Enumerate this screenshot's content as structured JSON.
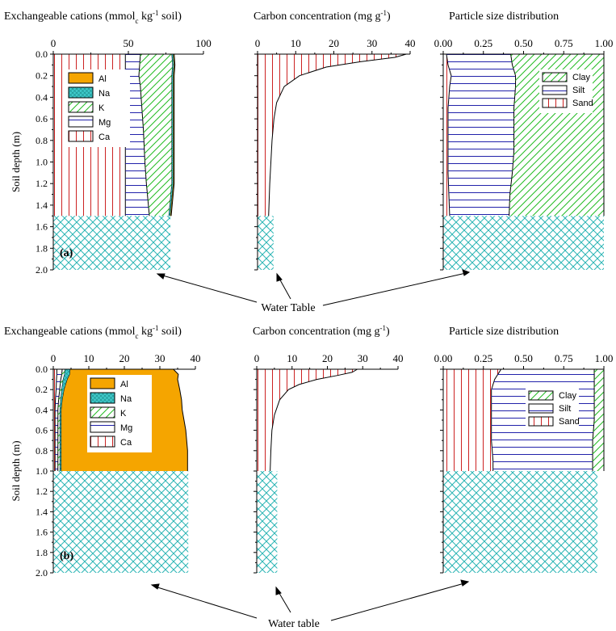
{
  "colors": {
    "al": "#f5a500",
    "na": "#3ec8c8",
    "k": "#2aa52a",
    "mg": "#2222aa",
    "ca": "#cc2222",
    "clay": "#22bb22",
    "silt": "#2222aa",
    "sand": "#cc2222",
    "water": "#2bb5b5",
    "axis": "#000000"
  },
  "water_labels": {
    "top": "Water Table",
    "bottom": "Water table"
  },
  "legend_labels": {
    "cations": [
      "Al",
      "Na",
      "K",
      "Mg",
      "Ca"
    ],
    "particles": [
      "Clay",
      "Silt",
      "Sand"
    ]
  },
  "chart_data": [
    {
      "panel": "a",
      "id": "a-cations",
      "type": "area",
      "title": "Exchangeable cations (mmolc kg-1 soil)",
      "title_parts": [
        "Exchangeable cations (mmol",
        "c",
        " kg",
        "-1",
        " soil)"
      ],
      "ylabel": "Soil depth (m)",
      "panel_label": "(a)",
      "xlim": [
        0,
        100
      ],
      "xticks": [
        0,
        50,
        100
      ],
      "ylim": [
        0,
        2
      ],
      "yticks": [
        "0.0",
        "0.2",
        "0.4",
        "0.6",
        "0.8",
        "1.0",
        "1.2",
        "1.4",
        "1.6",
        "1.8",
        "2.0"
      ],
      "water_table_depth": 1.5,
      "water_fill_x": 78,
      "depth": [
        0,
        0.1,
        0.2,
        0.3,
        0.5,
        0.7,
        1.0,
        1.2,
        1.5
      ],
      "series": [
        {
          "name": "Ca",
          "values": [
            48,
            48,
            48,
            48,
            48,
            48,
            48,
            48,
            48
          ]
        },
        {
          "name": "Mg",
          "values": [
            10,
            9.5,
            9,
            10,
            11,
            12,
            13,
            14,
            16
          ]
        },
        {
          "name": "K",
          "values": [
            21,
            22,
            22,
            21,
            20,
            19,
            18,
            17,
            13
          ]
        },
        {
          "name": "Na",
          "values": [
            1,
            1,
            1,
            1,
            1,
            1,
            1,
            1,
            1
          ]
        },
        {
          "name": "Al",
          "values": [
            0.5,
            0.5,
            0.5,
            0.5,
            0.5,
            0.5,
            0.5,
            0.5,
            0.5
          ]
        }
      ]
    },
    {
      "panel": "a",
      "id": "a-carbon",
      "type": "area",
      "title": "Carbon concentration (mg g-1)",
      "title_parts": [
        "Carbon concentration  (mg g",
        "-1",
        ")"
      ],
      "xlim": [
        0,
        40
      ],
      "xticks": [
        0,
        10,
        20,
        30,
        40
      ],
      "ylim": [
        0,
        2
      ],
      "water_table_depth": 1.5,
      "water_fill_x": 4.2,
      "depth": [
        0,
        0.03,
        0.07,
        0.12,
        0.2,
        0.3,
        0.45,
        0.6,
        0.8,
        1.0,
        1.2,
        1.5
      ],
      "values": [
        39,
        36,
        27,
        18,
        11,
        7,
        5,
        4.3,
        3.8,
        3.5,
        3.2,
        2.9
      ]
    },
    {
      "panel": "a",
      "id": "a-particle",
      "type": "area",
      "title": "Particle size distribution",
      "xlim": [
        0,
        1
      ],
      "xticks": [
        "0.00",
        "0.25",
        "0.50",
        "0.75",
        "1.00"
      ],
      "ylim": [
        0,
        2
      ],
      "water_table_depth": 1.5,
      "water_fill_x": 1.0,
      "depth": [
        0,
        0.1,
        0.2,
        0.3,
        0.5,
        0.7,
        0.9,
        1.1,
        1.3,
        1.5
      ],
      "series": [
        {
          "name": "Sand",
          "values": [
            0.02,
            0.03,
            0.05,
            0.04,
            0.03,
            0.03,
            0.03,
            0.03,
            0.035,
            0.04
          ]
        },
        {
          "name": "Silt",
          "values": [
            0.4,
            0.4,
            0.4,
            0.41,
            0.41,
            0.41,
            0.41,
            0.4,
            0.38,
            0.37
          ]
        },
        {
          "name": "Clay",
          "values": [
            0.58,
            0.57,
            0.55,
            0.55,
            0.56,
            0.56,
            0.56,
            0.57,
            0.585,
            0.59
          ]
        }
      ]
    },
    {
      "panel": "b",
      "id": "b-cations",
      "type": "area",
      "title": "Exchangeable cations (mmolc kg-1 soil)",
      "title_parts": [
        "Exchangeable cations (mmol",
        "c",
        " kg",
        "-1",
        " soil)"
      ],
      "ylabel": "Soil depth (m)",
      "panel_label": "(b)",
      "xlim": [
        0,
        40
      ],
      "xticks": [
        0,
        10,
        20,
        30,
        40
      ],
      "ylim": [
        0,
        2
      ],
      "yticks": [
        "0.0",
        "0.2",
        "0.4",
        "0.6",
        "0.8",
        "1.0",
        "1.2",
        "1.4",
        "1.6",
        "1.8",
        "2.0"
      ],
      "water_table_depth": 1.0,
      "water_fill_x": 38,
      "depth": [
        0,
        0.05,
        0.1,
        0.2,
        0.3,
        0.4,
        0.5,
        0.6,
        0.8,
        1.0
      ],
      "series": [
        {
          "name": "Ca",
          "values": [
            1,
            1,
            0.9,
            0.8,
            0.6,
            0.5,
            0.5,
            0.5,
            0.5,
            0.5
          ]
        },
        {
          "name": "Mg",
          "values": [
            1.5,
            1.4,
            1.2,
            1.0,
            0.9,
            0.8,
            0.8,
            0.8,
            0.8,
            0.8
          ]
        },
        {
          "name": "K",
          "values": [
            0.8,
            0.8,
            0.7,
            0.6,
            0.6,
            0.6,
            0.6,
            0.6,
            0.6,
            0.6
          ]
        },
        {
          "name": "Na",
          "values": [
            1.5,
            1.5,
            1.2,
            0.7,
            0.5,
            0.4,
            0.4,
            0.4,
            0.4,
            0.4
          ]
        },
        {
          "name": "Al",
          "values": [
            29,
            30.5,
            31,
            32.5,
            33.5,
            34,
            34.5,
            35,
            35.5,
            35.5
          ]
        }
      ]
    },
    {
      "panel": "b",
      "id": "b-carbon",
      "type": "area",
      "title": "Carbon concentration (mg g-1)",
      "title_parts": [
        "Carbon concentration  (mg g",
        "-1",
        ")"
      ],
      "xlim": [
        0,
        40
      ],
      "xticks": [
        0,
        10,
        20,
        30,
        40
      ],
      "ylim": [
        0,
        2
      ],
      "water_table_depth": 1.0,
      "water_fill_x": 5.8,
      "depth": [
        0,
        0.03,
        0.06,
        0.1,
        0.15,
        0.2,
        0.3,
        0.45,
        0.6,
        0.8,
        1.0
      ],
      "values": [
        28.5,
        27,
        23,
        17,
        12,
        9,
        6.5,
        5,
        4.3,
        4,
        3.8
      ]
    },
    {
      "panel": "b",
      "id": "b-particle",
      "type": "area",
      "title": "Particle size distribution",
      "xlim": [
        0,
        1
      ],
      "xticks": [
        "0.00",
        "0.25",
        "0.50",
        "0.75",
        "1.00"
      ],
      "ylim": [
        0,
        2
      ],
      "water_table_depth": 1.0,
      "water_fill_x": 0.96,
      "depth": [
        0,
        0.05,
        0.1,
        0.2,
        0.3,
        0.5,
        0.7,
        0.9,
        1.0
      ],
      "series": [
        {
          "name": "Sand",
          "values": [
            0.36,
            0.34,
            0.32,
            0.3,
            0.3,
            0.3,
            0.3,
            0.31,
            0.31
          ]
        },
        {
          "name": "Silt",
          "values": [
            0.58,
            0.6,
            0.62,
            0.64,
            0.64,
            0.64,
            0.63,
            0.62,
            0.62
          ]
        },
        {
          "name": "Clay",
          "values": [
            0.06,
            0.06,
            0.06,
            0.06,
            0.06,
            0.06,
            0.07,
            0.07,
            0.07
          ]
        }
      ]
    }
  ]
}
